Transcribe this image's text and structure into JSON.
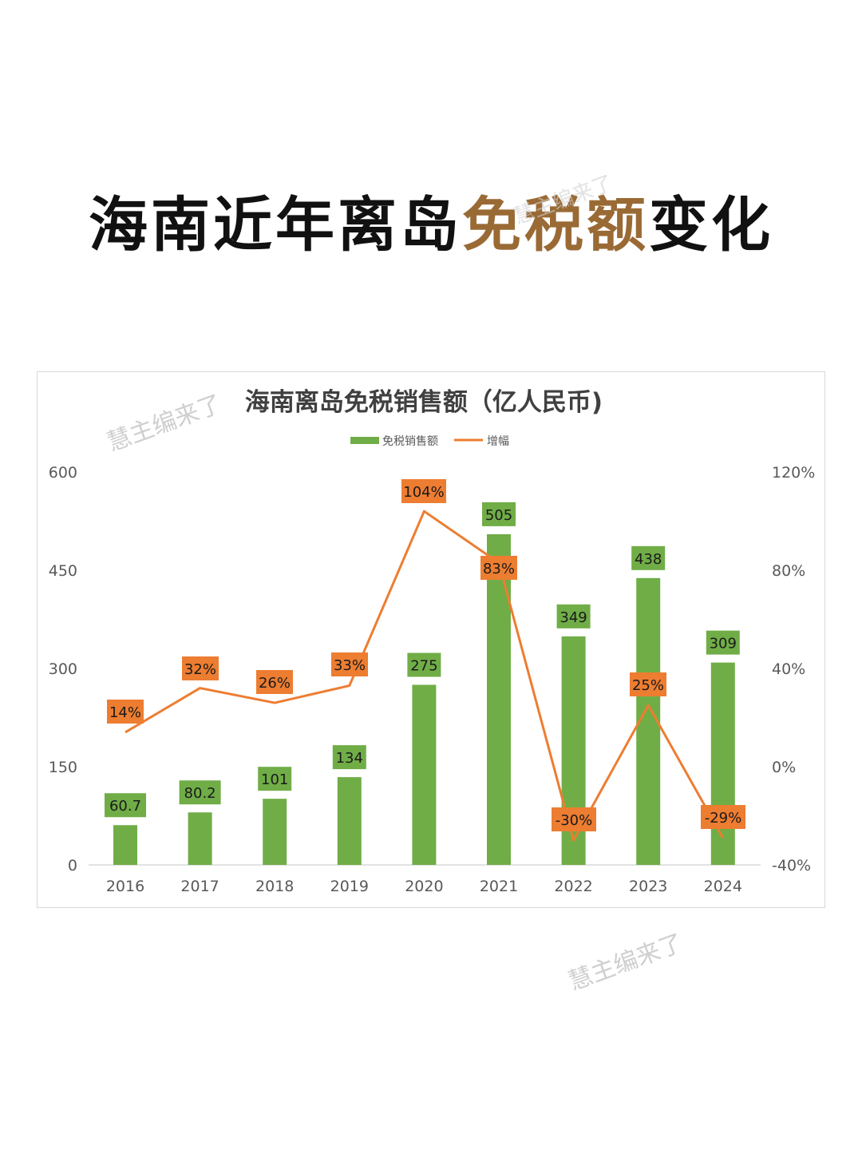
{
  "headline": {
    "part1": "海南近年离岛",
    "accent": "免税额",
    "part2": "变化",
    "accent_color": "#9a6a35"
  },
  "watermarks": [
    "慧主编来了",
    "慧主编来了",
    "慧主编来了"
  ],
  "chart_data": {
    "type": "bar+line",
    "title": "海南离岛免税销售额（亿人民币)",
    "categories": [
      "2016",
      "2017",
      "2018",
      "2019",
      "2020",
      "2021",
      "2022",
      "2023",
      "2024"
    ],
    "series": [
      {
        "name": "免税销售额",
        "type": "bar",
        "axis": "left",
        "color": "#70ad47",
        "values": [
          60.7,
          80.2,
          101,
          134,
          275,
          505,
          349,
          438,
          309
        ],
        "labels": [
          "60.7",
          "80.2",
          "101",
          "134",
          "275",
          "505",
          "349",
          "438",
          "309"
        ]
      },
      {
        "name": "增幅",
        "type": "line",
        "axis": "right",
        "color": "#ed7d31",
        "values": [
          14,
          32,
          26,
          33,
          104,
          83,
          -30,
          25,
          -29
        ],
        "labels": [
          "14%",
          "32%",
          "26%",
          "33%",
          "104%",
          "83%",
          "-30%",
          "25%",
          "-29%"
        ]
      }
    ],
    "left_axis": {
      "ticks": [
        "0",
        "150",
        "300",
        "450",
        "600"
      ],
      "ylim": [
        0,
        600
      ]
    },
    "right_axis": {
      "ticks": [
        "-40%",
        "0%",
        "40%",
        "80%",
        "120%"
      ],
      "ylim": [
        -40,
        120
      ]
    },
    "legend": {
      "position": "top",
      "entries": [
        "免税销售额",
        "增幅"
      ]
    },
    "grid": false
  }
}
